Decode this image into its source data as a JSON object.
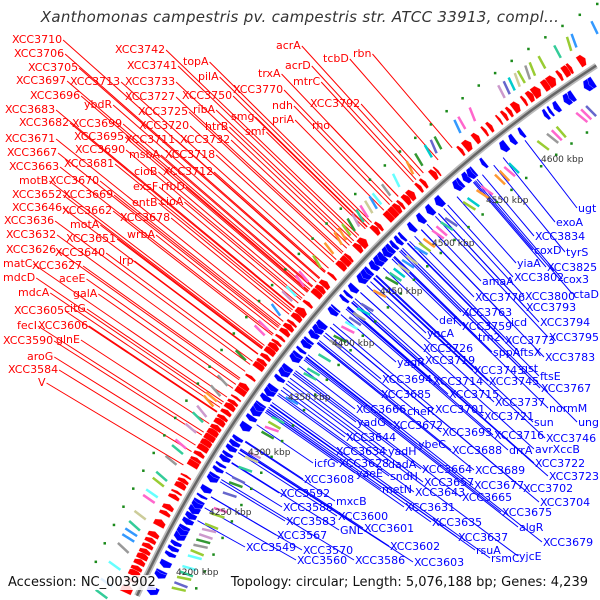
{
  "title": "Xanthomonas campestris pv. campestris str. ATCC 33913, compl...",
  "footer": {
    "accession": "Accession: NC_003902",
    "summary": "Topology: circular; Length: 5,076,188 bp; Genes: 4,239"
  },
  "colors": {
    "forward": "#ff0000",
    "reverse": "#0000ff",
    "backbone": "#888888",
    "tick_dot": "#1a8a1a"
  },
  "kbp_ticks": [
    "4200 kbp",
    "4250 kbp",
    "4300 kbp",
    "4350 kbp",
    "4400 kbp",
    "4450 kbp",
    "4500 kbp",
    "4550 kbp",
    "4600 kbp"
  ],
  "forward_labels": [
    "XCC3710",
    "XCC3706",
    "XCC3705",
    "XCC3697",
    "XCC3696",
    "XCC3683",
    "XCC3682",
    "XCC3671",
    "XCC3667",
    "XCC3663",
    "motB",
    "XCC3652",
    "XCC3646",
    "XCC3636",
    "XCC3632",
    "XCC3626",
    "matC",
    "mdcD",
    "mdcA",
    "XCC3605",
    "fecI",
    "XCC3590",
    "aroG",
    "XCC3584",
    "V",
    "XCC3713",
    "ybdR",
    "XCC3699",
    "XCC3695",
    "XCC3690",
    "XCC3681",
    "XCC3670",
    "XCC3669",
    "XCC3662",
    "motA",
    "XCC3651",
    "XCC3640",
    "XCC3627",
    "aceE",
    "galA",
    "citG",
    "XCC3606",
    "glnE",
    "XCC3742",
    "XCC3741",
    "XCC3733",
    "XCC3727",
    "XCC3725",
    "XCC3720",
    "XCC3711",
    "msbA",
    "cioB",
    "exsF",
    "entB",
    "wrbA",
    "lrp",
    "XCC3718",
    "XCC3712",
    "rfbD",
    "cioA",
    "XCC3678",
    "topA",
    "pilA",
    "XCC3750",
    "ribA",
    "htrB",
    "XCC3732",
    "smg",
    "smf",
    "XCC3770",
    "trxA",
    "acrA",
    "acrD",
    "mtrC",
    "ndh",
    "priA",
    "XCC3792",
    "rho",
    "tcbD",
    "rbn"
  ],
  "reverse_labels": [
    "ugt",
    "exoA",
    "XCC3834",
    "tyrS",
    "coxD",
    "XCC3825",
    "yiaA",
    "cox3",
    "amaA",
    "XCC3802",
    "ctaD",
    "XCC3776",
    "XCC3800",
    "XCC3763",
    "XCC3793",
    "def",
    "XCC3759",
    "icd",
    "XCC3794",
    "yncA",
    "trn2",
    "XCC3773",
    "XCC3795",
    "XCC3726",
    "sppA",
    "ftsX",
    "XCC3783",
    "yagR",
    "XCC3719",
    "XCC3743",
    "gst",
    "ftsE",
    "XCC3694",
    "XCC3714",
    "XCC3745",
    "XCC3767",
    "XCC3685",
    "XCC3715",
    "XCC3737",
    "normM",
    "XCC3666",
    "cheR",
    "XCC3701",
    "XCC3721",
    "sun",
    "ung",
    "yadG",
    "XCC3672",
    "XCC3693",
    "XCC3716",
    "XCC3746",
    "XCC3644",
    "ybeC",
    "XCC3688",
    "drrA",
    "avrXccB",
    "XCC3634",
    "yadH",
    "XCC3722",
    "icfG",
    "XCC3628",
    "dadA",
    "XCC3664",
    "XCC3689",
    "XCC3723",
    "XCC3608",
    "yaeE",
    "sndH",
    "XCC3657",
    "XCC3677",
    "XCC3702",
    "XCC3592",
    "metN",
    "XCC3643",
    "XCC3665",
    "XCC3704",
    "XCC3588",
    "mxcB",
    "XCC3600",
    "XCC3631",
    "XCC3675",
    "XCC3583",
    "GNL",
    "XCC3601",
    "XCC3635",
    "algR",
    "XCC3567",
    "XCC3637",
    "XCC3679",
    "XCC3549",
    "XCC3570",
    "XCC3602",
    "rsuA",
    "XCC3560",
    "XCC3586",
    "XCC3603",
    "rsmC",
    "yjcE"
  ]
}
